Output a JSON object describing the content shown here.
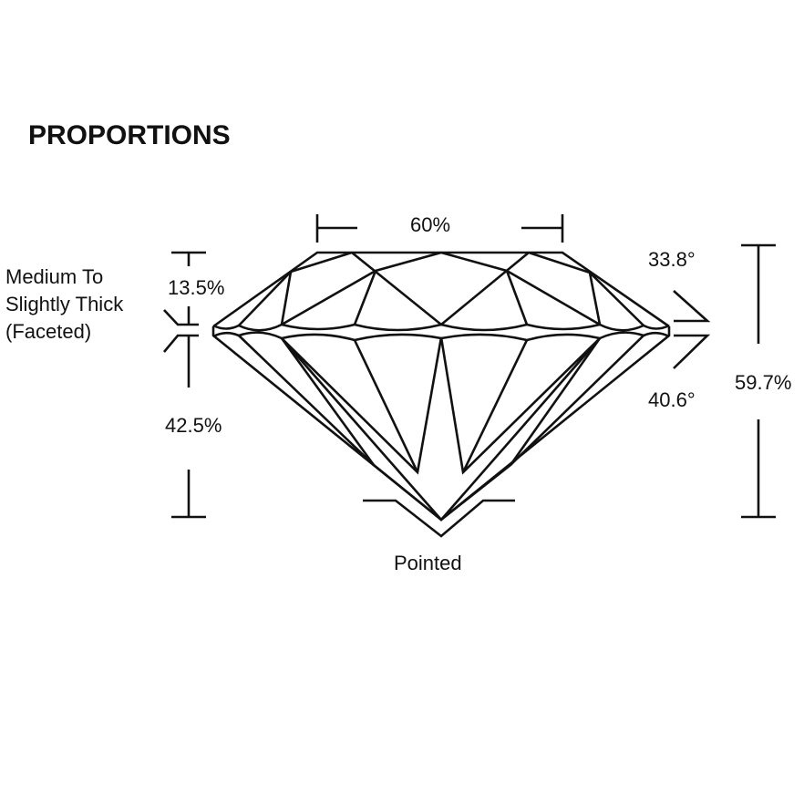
{
  "title": "PROPORTIONS",
  "labels": {
    "table": "60%",
    "crown_height": "13.5%",
    "pavilion_depth": "42.5%",
    "total_depth": "59.7%",
    "crown_angle": "33.8°",
    "pavilion_angle": "40.6°",
    "girdle_line1": "Medium To",
    "girdle_line2": "Slightly Thick",
    "girdle_line3": "(Faceted)",
    "culet": "Pointed"
  }
}
